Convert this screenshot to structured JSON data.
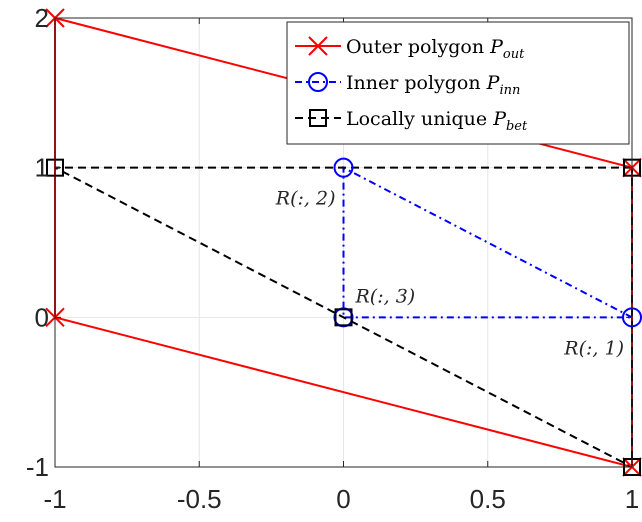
{
  "chart_data": {
    "type": "line",
    "xlim": [
      -1,
      1
    ],
    "ylim": [
      -1,
      2
    ],
    "x_ticks": [
      -1,
      -0.5,
      0,
      0.5,
      1
    ],
    "x_tick_labels": [
      "-1",
      "-0.5",
      "0",
      "0.5",
      "1"
    ],
    "y_ticks": [
      -1,
      0,
      1,
      2
    ],
    "y_tick_labels": [
      "-1",
      "0",
      "1",
      "2"
    ],
    "grid": true,
    "legend_position": "top-right",
    "series": [
      {
        "id": "outer",
        "name": "Outer polygon P_out",
        "legend_main": "Outer polygon ",
        "legend_sym": "P",
        "legend_sub": "out",
        "color": "#ff0000",
        "dash": "",
        "marker": "x",
        "x": [
          -1,
          1,
          1,
          -1,
          -1
        ],
        "y": [
          2,
          1,
          -1,
          0,
          2
        ]
      },
      {
        "id": "inner",
        "name": "Inner polygon P_inn",
        "legend_main": "Inner polygon ",
        "legend_sym": "P",
        "legend_sub": "inn",
        "color": "#0000ff",
        "dash": "7 4 2 4",
        "marker": "circle",
        "x": [
          1,
          0,
          0,
          1
        ],
        "y": [
          0,
          1,
          0,
          0
        ]
      },
      {
        "id": "between",
        "name": "Locally unique P_bet",
        "legend_main": "Locally unique ",
        "legend_sym": "P",
        "legend_sub": "bet",
        "color": "#000000",
        "dash": "8 5",
        "marker": "square",
        "x": [
          1,
          -1,
          0,
          1,
          1
        ],
        "y": [
          1,
          1,
          0,
          -1,
          1
        ]
      }
    ],
    "annotations": [
      {
        "text": "R(:, 1)",
        "x": 1,
        "y": 0,
        "anchor": "end",
        "pos": "below"
      },
      {
        "text": "R(:, 2)",
        "x": 0,
        "y": 1,
        "anchor": "end",
        "pos": "below"
      },
      {
        "text": "R(:, 3)",
        "x": 0,
        "y": 0,
        "anchor": "start",
        "pos": "above"
      }
    ]
  }
}
